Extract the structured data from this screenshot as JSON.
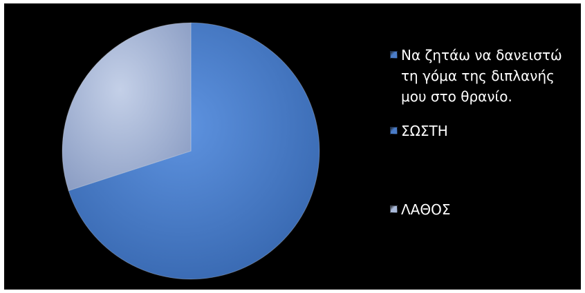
{
  "chart_data": {
    "type": "pie",
    "title": "",
    "categories": [
      "Να ζητάω να δανειστώ τη γόμα της διπλανής μου στο θρανίο.",
      "ΣΩΣΤΗ",
      "ΛΑΘΟΣ"
    ],
    "values": [
      0,
      70,
      30
    ],
    "colors": [
      "#4a7cc8",
      "#4a7cc8",
      "#a9b9d9"
    ],
    "start_angle_deg": 0,
    "direction": "clockwise",
    "legend_position": "right",
    "background": "#000000"
  }
}
